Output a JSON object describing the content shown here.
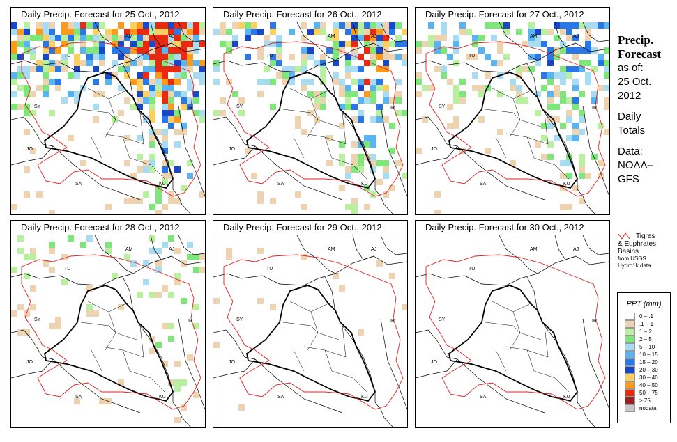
{
  "panels": [
    {
      "title": "Daily Precip. Forecast for  25 Oct., 2012",
      "intensity": 1.0
    },
    {
      "title": "Daily Precip. Forecast for  26 Oct., 2012",
      "intensity": 0.7
    },
    {
      "title": "Daily Precip. Forecast for  27 Oct., 2012",
      "intensity": 0.55
    },
    {
      "title": "Daily Precip. Forecast for  28 Oct., 2012",
      "intensity": 0.25
    },
    {
      "title": "Daily Precip. Forecast for  29 Oct., 2012",
      "intensity": 0.04
    },
    {
      "title": "Daily Precip. Forecast for  30 Oct., 2012",
      "intensity": 0.0
    }
  ],
  "country_labels": [
    "AM",
    "AJ",
    "TU",
    "SY",
    "IR",
    "JO",
    "SA",
    "KU"
  ],
  "side": {
    "heading1": "Precip.",
    "heading2": "Forecast",
    "asof": "as of:",
    "date1": "25 Oct.",
    "date2": "2012",
    "daily1": "Daily",
    "daily2": "Totals",
    "data1": "Data:",
    "data2": "NOAA–",
    "data3": "GFS"
  },
  "basin": {
    "line1": "Tigres",
    "line2": "& Euphrates",
    "line3": "Basins",
    "line4": "from USGS",
    "line5": "Hydro1k data",
    "line_color": "#e02020"
  },
  "legend": {
    "title": "PPT (mm)",
    "items": [
      {
        "label": "0 – .1",
        "color": "#ffffff"
      },
      {
        "label": ".1 – 1",
        "color": "#edd3b0"
      },
      {
        "label": "1 – 2",
        "color": "#b8f0a0"
      },
      {
        "label": "2 – 5",
        "color": "#7ee67a"
      },
      {
        "label": "5 – 10",
        "color": "#a8dcf2"
      },
      {
        "label": "10 – 15",
        "color": "#5ab4f0"
      },
      {
        "label": "15 – 20",
        "color": "#2a78e6"
      },
      {
        "label": "20 – 30",
        "color": "#1848c8"
      },
      {
        "label": "30 – 40",
        "color": "#fcd060"
      },
      {
        "label": "40 – 50",
        "color": "#fc9a1c"
      },
      {
        "label": "50 – 75",
        "color": "#e82a10"
      },
      {
        "label": "> 75",
        "color": "#9c2020"
      },
      {
        "label": "nodata",
        "color": "#c8c8c8"
      }
    ]
  }
}
